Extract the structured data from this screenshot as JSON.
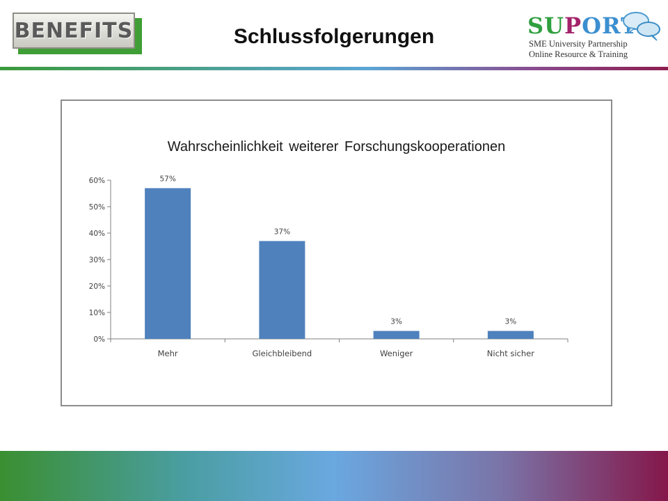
{
  "header": {
    "logo_text": "BENEFITS",
    "slide_title": "Schlussfolgerungen",
    "partner_logo": {
      "word_parts": [
        "SU",
        "P",
        "ORT"
      ],
      "tagline_1": "SME University Partnership",
      "tagline_2": "Online Resource & Training",
      "icon": "speech-bubbles-icon"
    }
  },
  "colors": {
    "bar": "#4f81bd",
    "accent_green": "#3f9e35",
    "accent_purple": "#8d1e4f"
  },
  "chart_data": {
    "type": "bar",
    "title": "Wahrscheinlichkeit weiterer Forschungskooperationen",
    "categories": [
      "Mehr",
      "Gleichbleibend",
      "Weniger",
      "Nicht sicher"
    ],
    "values": [
      57,
      37,
      3,
      3
    ],
    "data_labels": [
      "57%",
      "37%",
      "3%",
      "3%"
    ],
    "y_ticks": [
      "0%",
      "10%",
      "20%",
      "30%",
      "40%",
      "50%",
      "60%"
    ],
    "ylim": [
      0,
      60
    ],
    "xlabel": "",
    "ylabel": "",
    "grid": false,
    "legend": "none"
  }
}
